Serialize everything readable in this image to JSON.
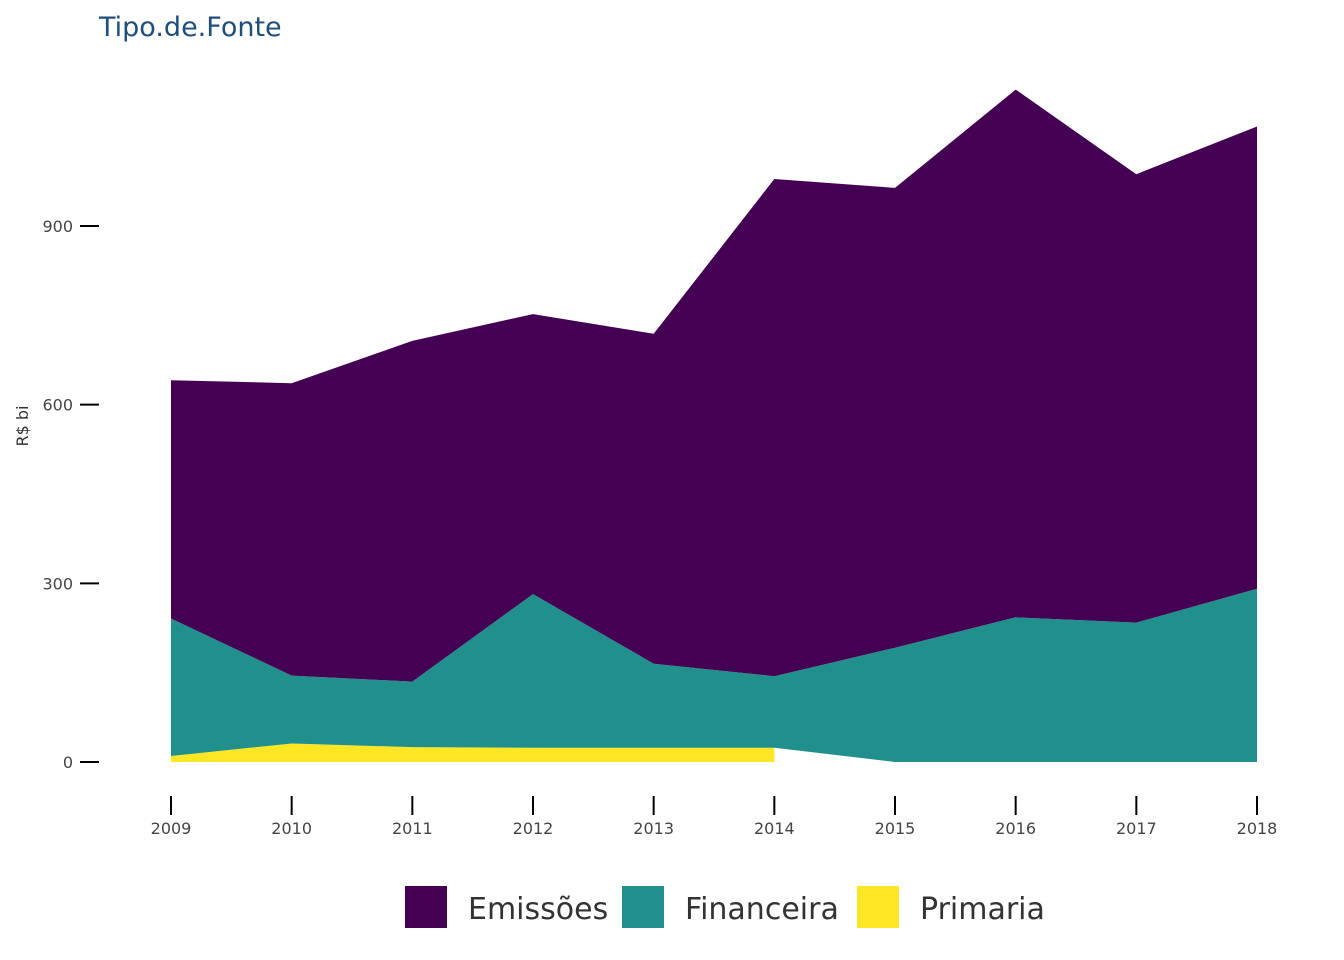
{
  "chart_data": {
    "type": "area",
    "stacked": true,
    "title": "Tipo.de.Fonte",
    "xlabel": "",
    "ylabel": "R$ bi",
    "x": [
      2009,
      2010,
      2011,
      2012,
      2013,
      2014,
      2015,
      2016,
      2017,
      2018
    ],
    "x_tick_labels": [
      "2009",
      "2010",
      "2011",
      "2012",
      "2013",
      "2014",
      "2015",
      "2016",
      "2017",
      "2018"
    ],
    "y_ticks": [
      0,
      300,
      600,
      900
    ],
    "y_tick_labels": [
      "0",
      "300",
      "600",
      "900"
    ],
    "ylim": [
      -40,
      1130
    ],
    "grid": false,
    "legend_position": "bottom",
    "series": [
      {
        "name": "Primaria",
        "color": "#fde725",
        "values": [
          10,
          31,
          25,
          24,
          24,
          24,
          null,
          null,
          null,
          null
        ]
      },
      {
        "name": "Financeira",
        "color": "#21908c",
        "values": [
          231,
          114,
          110,
          258,
          141,
          120,
          192,
          243,
          234,
          291
        ]
      },
      {
        "name": "Emissões",
        "color": "#440154",
        "values": [
          400,
          491,
          572,
          470,
          554,
          835,
          772,
          886,
          753,
          776
        ]
      }
    ],
    "stack_totals": [
      641,
      636,
      707,
      752,
      719,
      979,
      964,
      1129,
      987,
      1067
    ],
    "legend": {
      "items": [
        {
          "label": "Emissões",
          "color": "#440154"
        },
        {
          "label": "Financeira",
          "color": "#21908c"
        },
        {
          "label": "Primaria",
          "color": "#fde725"
        }
      ]
    }
  }
}
